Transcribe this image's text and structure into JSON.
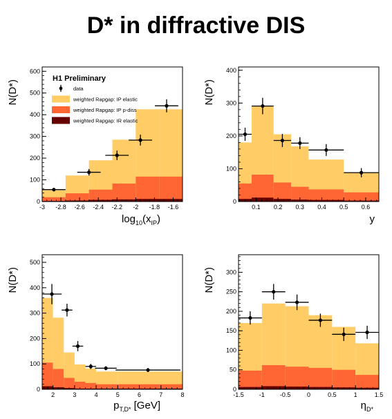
{
  "title": "D* in diffractive DIS",
  "legend": {
    "title": "H1 Preliminary",
    "entries": [
      {
        "name": "data",
        "kind": "marker"
      },
      {
        "name": "weighted Rapgap: IP elastic",
        "kind": "box",
        "color": "#FFCC66"
      },
      {
        "name": "weighted Rapgap: IP p-diss",
        "kind": "box",
        "color": "#FF6633"
      },
      {
        "name": "weighted Rapgap: IR elastic",
        "kind": "box",
        "color": "#660000"
      }
    ]
  },
  "chart_data": [
    {
      "type": "bar",
      "ylabel": "N(D*)",
      "xlabel": "log10(xIP)",
      "xlabel_main": "log",
      "xlabel_sub": "10",
      "xlabel_mid": "(x",
      "xlabel_sub2": "IP",
      "xlabel_end": ")",
      "xlim": [
        -3.0,
        -1.5
      ],
      "ylim": [
        0,
        620
      ],
      "xticks": [
        -3.0,
        -2.8,
        -2.6,
        -2.4,
        -2.2,
        -2.0,
        -1.8,
        -1.6
      ],
      "xtick_labels": [
        "-3",
        "-2.8",
        "-2.6",
        "-2.4",
        "-2.2",
        "-2",
        "-1.8",
        "-1.6"
      ],
      "yticks": [
        0,
        100,
        200,
        300,
        400,
        500,
        600
      ],
      "ytick_labels": [
        "0",
        "100",
        "200",
        "300",
        "400",
        "500",
        "600"
      ],
      "bins": [
        -3.0,
        -2.75,
        -2.5,
        -2.25,
        -2.0,
        -1.75,
        -1.5
      ],
      "stack_total": [
        52,
        120,
        190,
        285,
        425,
        425
      ],
      "pdiss_top": [
        20,
        38,
        55,
        83,
        115,
        115
      ],
      "ir_top": [
        3,
        5,
        8,
        10,
        12,
        12
      ],
      "data": {
        "x": [
          -2.875,
          -2.5,
          -2.2,
          -1.95,
          -1.67
        ],
        "y": [
          55,
          135,
          213,
          283,
          441
        ],
        "yerr": [
          8,
          15,
          22,
          25,
          30
        ],
        "xerr": [
          0.125,
          0.125,
          0.125,
          0.125,
          0.125
        ]
      }
    },
    {
      "type": "bar",
      "ylabel": "N(D*)",
      "xlabel": "y",
      "xlim": [
        0.02,
        0.66
      ],
      "ylim": [
        0,
        410
      ],
      "xticks": [
        0.1,
        0.2,
        0.3,
        0.4,
        0.5,
        0.6
      ],
      "xtick_labels": [
        "0.1",
        "0.2",
        "0.3",
        "0.4",
        "0.5",
        "0.6"
      ],
      "yticks": [
        0,
        100,
        200,
        300,
        400
      ],
      "ytick_labels": [
        "0",
        "100",
        "200",
        "300",
        "400"
      ],
      "bins": [
        0.02,
        0.08,
        0.18,
        0.26,
        0.34,
        0.5,
        0.66
      ],
      "stack_total": [
        180,
        292,
        205,
        168,
        128,
        88
      ],
      "pdiss_top": [
        55,
        82,
        58,
        45,
        37,
        28
      ],
      "ir_top": [
        8,
        12,
        8,
        6,
        5,
        3
      ],
      "data": {
        "x": [
          0.05,
          0.13,
          0.22,
          0.3,
          0.42,
          0.58
        ],
        "y": [
          205,
          291,
          186,
          178,
          157,
          88
        ],
        "yerr": [
          20,
          25,
          20,
          18,
          18,
          14
        ],
        "xerr": [
          0.03,
          0.05,
          0.04,
          0.04,
          0.08,
          0.08
        ]
      }
    },
    {
      "type": "bar",
      "ylabel": "N(D*)",
      "xlabel": "pT,D* [GeV]",
      "xlabel_main": "p",
      "xlabel_sub": "T,D*",
      "xlabel_end": " [GeV]",
      "xlim": [
        1.5,
        8.0
      ],
      "ylim": [
        0,
        530
      ],
      "xticks": [
        2,
        3,
        4,
        5,
        6,
        7,
        8
      ],
      "xtick_labels": [
        "2",
        "3",
        "4",
        "5",
        "6",
        "7",
        "8"
      ],
      "yticks": [
        0,
        100,
        200,
        300,
        400,
        500
      ],
      "ytick_labels": [
        "0",
        "100",
        "200",
        "300",
        "400",
        "500"
      ],
      "bins": [
        1.5,
        2.0,
        2.5,
        3.0,
        3.5,
        4.0,
        5.0,
        8.0
      ],
      "stack_total": [
        360,
        282,
        145,
        98,
        82,
        70,
        70
      ],
      "pdiss_top": [
        105,
        80,
        45,
        30,
        25,
        20,
        20
      ],
      "ir_top": [
        12,
        8,
        5,
        3,
        3,
        3,
        3
      ],
      "data": {
        "x": [
          1.95,
          2.65,
          3.15,
          3.75,
          4.45,
          6.4
        ],
        "y": [
          375,
          312,
          170,
          90,
          83,
          76
        ],
        "yerr": [
          40,
          25,
          20,
          10,
          8,
          8
        ],
        "xerr": [
          0.45,
          0.25,
          0.25,
          0.25,
          0.5,
          1.5
        ]
      }
    },
    {
      "type": "bar",
      "ylabel": "N(D*)",
      "xlabel": "ηD*",
      "xlabel_main": "η",
      "xlabel_sub": "D*",
      "xlim": [
        -1.5,
        1.5
      ],
      "ylim": [
        0,
        345
      ],
      "xticks": [
        -1.5,
        -1.0,
        -0.5,
        0.0,
        0.5,
        1.0,
        1.5
      ],
      "xtick_labels": [
        "-1.5",
        "-1",
        "-0.5",
        "0",
        "0.5",
        "1",
        "1.5"
      ],
      "yticks": [
        0,
        50,
        100,
        150,
        200,
        250,
        300
      ],
      "ytick_labels": [
        "0",
        "50",
        "100",
        "150",
        "200",
        "250",
        "300"
      ],
      "bins": [
        -1.5,
        -1.0,
        -0.5,
        0.0,
        0.5,
        1.0,
        1.5
      ],
      "stack_total": [
        170,
        220,
        213,
        190,
        160,
        118
      ],
      "pdiss_top": [
        48,
        62,
        58,
        55,
        50,
        37
      ],
      "ir_top": [
        6,
        8,
        7,
        6,
        5,
        4
      ],
      "data": {
        "x": [
          -1.25,
          -0.75,
          -0.25,
          0.25,
          0.75,
          1.25
        ],
        "y": [
          183,
          250,
          223,
          177,
          141,
          146
        ],
        "yerr": [
          17,
          20,
          20,
          17,
          17,
          17
        ],
        "xerr": [
          0.25,
          0.25,
          0.25,
          0.25,
          0.25,
          0.25
        ]
      }
    }
  ],
  "colors": {
    "ip_elastic": "#FFCC66",
    "ip_pdiss": "#FF6633",
    "ir_elastic": "#660000",
    "data": "#000000"
  }
}
